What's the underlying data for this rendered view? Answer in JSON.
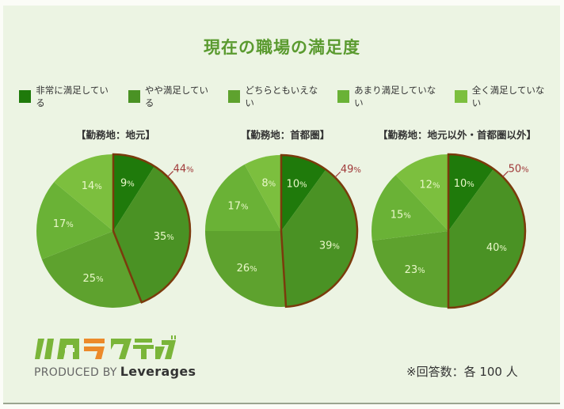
{
  "title": "現在の職場の満足度",
  "legend": [
    {
      "label": "非常に満足している",
      "color": "#1f7a0b"
    },
    {
      "label": "やや満足している",
      "color": "#4a9224"
    },
    {
      "label": "どちらともいえない",
      "color": "#5ea22e"
    },
    {
      "label": "あまり満足していない",
      "color": "#6ab236"
    },
    {
      "label": "全く満足していない",
      "color": "#7cbf3e"
    }
  ],
  "note": "※回答数：各 100 人",
  "logo": {
    "text": "ハタラクティブ",
    "produced_by": "PRODUCED BY",
    "brand": "Leverages"
  },
  "chart_data": [
    {
      "type": "pie",
      "title": "【勤務地：地元】",
      "categories": [
        "非常に満足している",
        "やや満足している",
        "どちらともいえない",
        "あまり満足していない",
        "全く満足していない"
      ],
      "values": [
        9,
        35,
        25,
        17,
        14
      ],
      "highlight": {
        "label": "44%",
        "sum_of": [
          "非常に満足している",
          "やや満足している"
        ],
        "value": 44
      }
    },
    {
      "type": "pie",
      "title": "【勤務地：首都圏】",
      "categories": [
        "非常に満足している",
        "やや満足している",
        "どちらともいえない",
        "あまり満足していない",
        "全く満足していない"
      ],
      "values": [
        10,
        39,
        26,
        17,
        8
      ],
      "highlight": {
        "label": "49%",
        "sum_of": [
          "非常に満足している",
          "やや満足している"
        ],
        "value": 49
      }
    },
    {
      "type": "pie",
      "title": "【勤務地：地元以外・首都圏以外】",
      "categories": [
        "非常に満足している",
        "やや満足している",
        "どちらともいえない",
        "あまり満足していない",
        "全く満足していない"
      ],
      "values": [
        10,
        40,
        23,
        15,
        12
      ],
      "highlight": {
        "label": "50%",
        "sum_of": [
          "非常に満足している",
          "やや満足している"
        ],
        "value": 50
      }
    }
  ]
}
